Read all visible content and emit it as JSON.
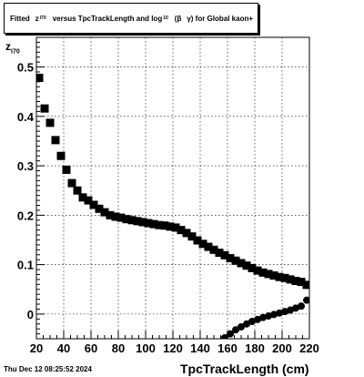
{
  "chart_data": {
    "type": "scatter",
    "title_parts": {
      "a": "Fitted",
      "b": "z",
      "b_sub": "I70",
      "c": "versus TpcTrackLength and log",
      "c_sub": "10",
      "d": "(β",
      "e": "γ) for Global kaon+"
    },
    "xlabel": "TpcTrackLength (cm)",
    "ylabel": "z",
    "ylabel_sub": "I70",
    "xlim": [
      20,
      220
    ],
    "ylim": [
      -0.05,
      0.56
    ],
    "xticks": [
      20,
      40,
      60,
      80,
      100,
      120,
      140,
      160,
      180,
      200,
      220
    ],
    "yticks": [
      0,
      0.1,
      0.2,
      0.3,
      0.4,
      0.5
    ],
    "ytick_labels": [
      "0",
      "0.1",
      "0.2",
      "0.3",
      "0.4",
      "0.5"
    ],
    "grid": true,
    "series": [
      {
        "marker": "square",
        "x": [
          22,
          26,
          30,
          34,
          38,
          42,
          46,
          50,
          54,
          58,
          62,
          66,
          70,
          74,
          78,
          82,
          86,
          90,
          94,
          98,
          102,
          106,
          110,
          114,
          118,
          122,
          126,
          130,
          134,
          138,
          142,
          146,
          150,
          154,
          158,
          162,
          166,
          170,
          174,
          178,
          182,
          186,
          190,
          194,
          198,
          202,
          206,
          210,
          214,
          218
        ],
        "y": [
          0.478,
          0.416,
          0.387,
          0.352,
          0.32,
          0.292,
          0.265,
          0.25,
          0.236,
          0.23,
          0.221,
          0.213,
          0.206,
          0.2,
          0.197,
          0.195,
          0.192,
          0.19,
          0.188,
          0.186,
          0.184,
          0.182,
          0.18,
          0.179,
          0.177,
          0.175,
          0.17,
          0.164,
          0.157,
          0.149,
          0.142,
          0.136,
          0.13,
          0.124,
          0.119,
          0.113,
          0.108,
          0.103,
          0.098,
          0.093,
          0.088,
          0.084,
          0.081,
          0.078,
          0.075,
          0.073,
          0.07,
          0.067,
          0.065,
          0.059
        ]
      },
      {
        "marker": "circle",
        "x": [
          158,
          162,
          166,
          170,
          174,
          178,
          182,
          186,
          190,
          194,
          198,
          202,
          206,
          210,
          214,
          218
        ],
        "y": [
          -0.048,
          -0.04,
          -0.032,
          -0.026,
          -0.02,
          -0.015,
          -0.011,
          -0.007,
          -0.004,
          -0.001,
          0.002,
          0.005,
          0.008,
          0.012,
          0.016,
          0.028
        ]
      }
    ]
  },
  "footer": {
    "date": "Thu Dec 12 08:25:52 2024"
  }
}
